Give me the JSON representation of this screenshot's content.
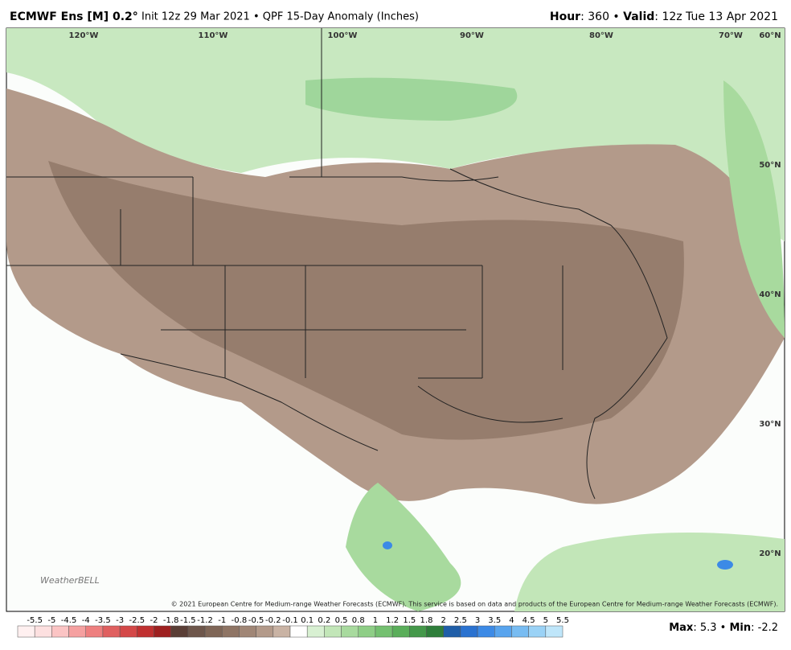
{
  "header": {
    "title": "ECMWF Ens [M] 0.2°",
    "subtitle": "Init 12z 29 Mar 2021 • QPF 15-Day Anomaly (Inches)",
    "right": [
      {
        "text": "Hour",
        "bold": true
      },
      {
        "text": ": 360 • "
      },
      {
        "text": "Valid",
        "bold": true
      },
      {
        "text": ": 12z Tue 13 Apr 2021"
      }
    ]
  },
  "map": {
    "lon_labels": [
      "120°W",
      "110°W",
      "100°W",
      "90°W",
      "80°W",
      "70°W"
    ],
    "lat_labels": [
      "60°N",
      "50°N",
      "40°N",
      "30°N",
      "20°N"
    ],
    "logo": "WeatherBELL",
    "copyright": "© 2021 European Centre for Medium-range Weather Forecasts (ECMWF). This service is based on data and products of the European Centre for Medium-range Weather Forecasts (ECMWF)."
  },
  "colorbar": {
    "ticks": [
      -5.5,
      -5,
      -4.5,
      -4,
      -3.5,
      -3,
      -2.5,
      -2,
      -1.8,
      -1.5,
      -1.2,
      -1,
      -0.8,
      -0.5,
      -0.2,
      -0.1,
      0.1,
      0.2,
      0.5,
      0.8,
      1,
      1.2,
      1.5,
      1.8,
      2,
      2.5,
      3,
      3.5,
      4,
      4.5,
      5,
      5.5
    ],
    "colors": [
      "#fff0f0",
      "#fde0e0",
      "#fbc4c4",
      "#f5a0a0",
      "#ee7f7f",
      "#e06060",
      "#d44848",
      "#c03030",
      "#9e2020",
      "#5a3e36",
      "#6e564b",
      "#7f6657",
      "#8f7565",
      "#a08676",
      "#b39a8a",
      "#c9b3a4",
      "#ffffff",
      "#d8f0d2",
      "#c2e6b8",
      "#a8da9e",
      "#8ece86",
      "#74c070",
      "#5aae5a",
      "#44984a",
      "#2e7e3a",
      "#1f5ea8",
      "#2a72d0",
      "#3c8ae6",
      "#58a4ee",
      "#78bcf2",
      "#9ad2f6",
      "#bfe6fa"
    ]
  },
  "footer": [
    {
      "text": "Max",
      "bold": true
    },
    {
      "text": ": 5.3 • "
    },
    {
      "text": "Min",
      "bold": true
    },
    {
      "text": ": -2.2"
    }
  ]
}
